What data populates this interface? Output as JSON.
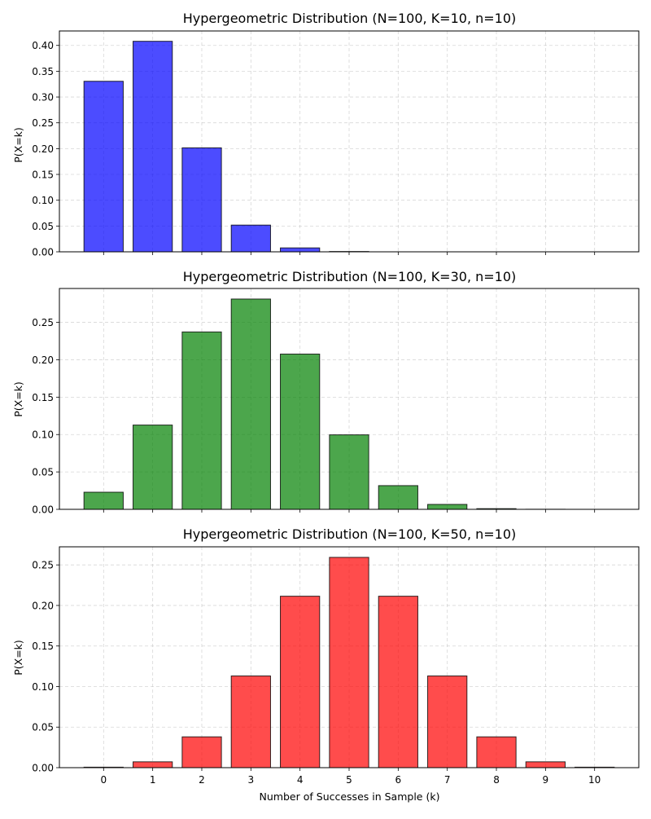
{
  "chart_data": [
    {
      "type": "bar",
      "title": "Hypergeometric Distribution (N=100, K=10, n=10)",
      "ylabel": "P(X=k)",
      "xlabel": "",
      "categories": [
        "0",
        "1",
        "2",
        "3",
        "4",
        "5",
        "6",
        "7",
        "8",
        "9",
        "10"
      ],
      "values": [
        0.3305,
        0.408,
        0.2015,
        0.0518,
        0.0076,
        0.0006,
        0.0,
        0.0,
        0.0,
        0.0,
        0.0
      ],
      "yticks": [
        "0.00",
        "0.05",
        "0.10",
        "0.15",
        "0.20",
        "0.25",
        "0.30",
        "0.35",
        "0.40"
      ],
      "ytick_values": [
        0,
        0.05,
        0.1,
        0.15,
        0.2,
        0.25,
        0.3,
        0.35,
        0.4
      ],
      "ylim": [
        0,
        0.428
      ],
      "xlim": [
        -0.9,
        10.9
      ],
      "color": "#0000ff",
      "show_xtick_labels": false,
      "grid": true
    },
    {
      "type": "bar",
      "title": "Hypergeometric Distribution (N=100, K=30, n=10)",
      "ylabel": "P(X=k)",
      "xlabel": "",
      "categories": [
        "0",
        "1",
        "2",
        "3",
        "4",
        "5",
        "6",
        "7",
        "8",
        "9",
        "10"
      ],
      "values": [
        0.0229,
        0.1127,
        0.2372,
        0.2812,
        0.2076,
        0.0996,
        0.0317,
        0.0066,
        0.0009,
        0.0001,
        0.0
      ],
      "yticks": [
        "0.00",
        "0.05",
        "0.10",
        "0.15",
        "0.20",
        "0.25"
      ],
      "ytick_values": [
        0,
        0.05,
        0.1,
        0.15,
        0.2,
        0.25
      ],
      "ylim": [
        0,
        0.2953
      ],
      "xlim": [
        -0.9,
        10.9
      ],
      "color": "#008000",
      "show_xtick_labels": false,
      "grid": true
    },
    {
      "type": "bar",
      "title": "Hypergeometric Distribution (N=100, K=50, n=10)",
      "ylabel": "P(X=k)",
      "xlabel": "Number of Successes in Sample (k)",
      "categories": [
        "0",
        "1",
        "2",
        "3",
        "4",
        "5",
        "6",
        "7",
        "8",
        "9",
        "10"
      ],
      "values": [
        0.0006,
        0.0072,
        0.038,
        0.1131,
        0.2114,
        0.2593,
        0.2114,
        0.1131,
        0.038,
        0.0072,
        0.0006
      ],
      "yticks": [
        "0.00",
        "0.05",
        "0.10",
        "0.15",
        "0.20",
        "0.25"
      ],
      "ytick_values": [
        0,
        0.05,
        0.1,
        0.15,
        0.2,
        0.25
      ],
      "ylim": [
        0,
        0.2723
      ],
      "xlim": [
        -0.9,
        10.9
      ],
      "color": "#ff0000",
      "show_xtick_labels": true,
      "grid": true
    }
  ]
}
